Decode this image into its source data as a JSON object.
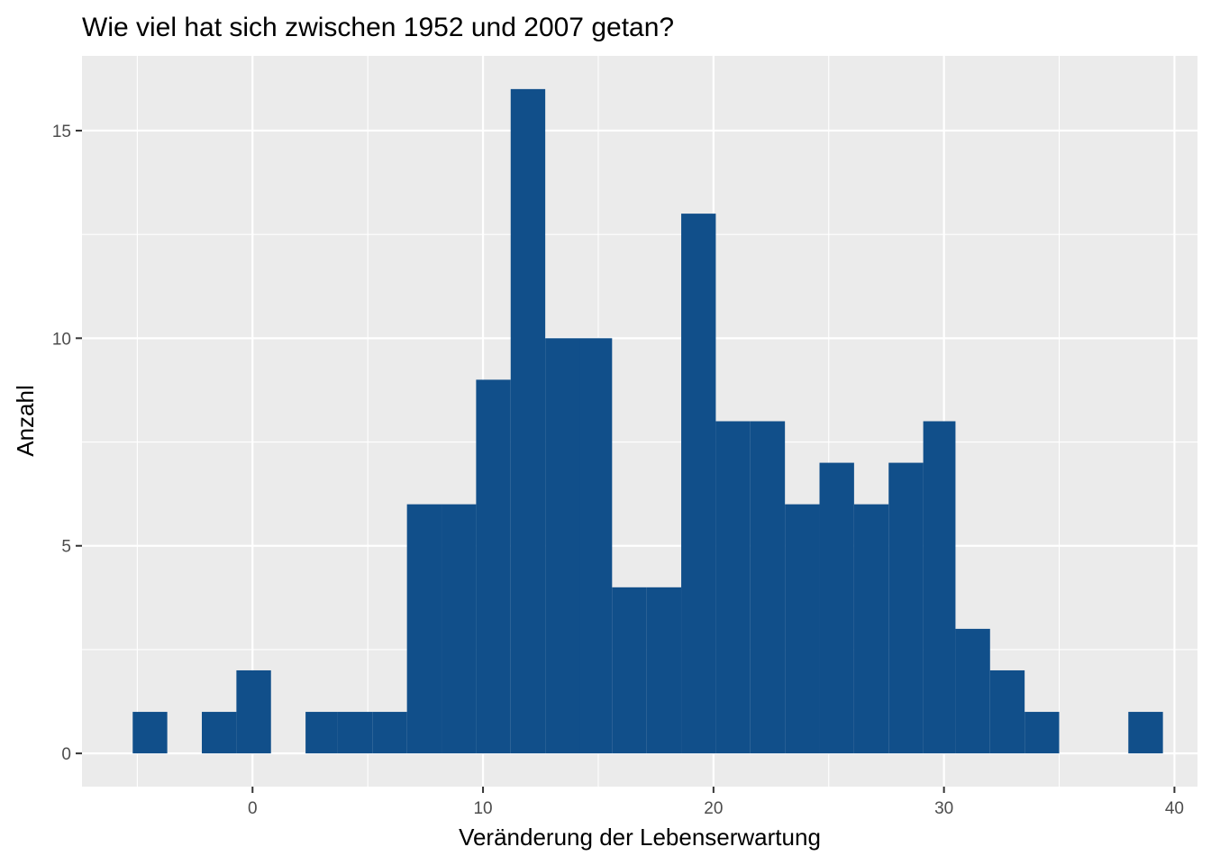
{
  "colors": {
    "panel_background": "#EBEBEB",
    "grid_major": "#FFFFFF",
    "bar_fill": "#114F8A",
    "tick_color": "#333333"
  },
  "chart_data": {
    "type": "bar",
    "title": "Wie viel hat sich zwischen 1952 und 2007 getan?",
    "xlabel": "Veränderung der Lebenserwartung",
    "ylabel": "Anzahl",
    "xlim": [
      -7.4,
      41.0
    ],
    "ylim": [
      -0.8,
      16.8
    ],
    "x_ticks": [
      0,
      10,
      20,
      30,
      40
    ],
    "x_tick_labels": [
      "0",
      "10",
      "20",
      "30",
      "40"
    ],
    "y_ticks": [
      0,
      5,
      10,
      15
    ],
    "y_tick_labels": [
      "0",
      "5",
      "10",
      "15"
    ],
    "grid": true,
    "bin_width": 1.49,
    "bins": [
      {
        "x0": -5.2,
        "x1": -3.7,
        "count": 1
      },
      {
        "x0": -3.7,
        "x1": -2.2,
        "count": 0
      },
      {
        "x0": -2.2,
        "x1": -0.7,
        "count": 1
      },
      {
        "x0": -0.7,
        "x1": 0.8,
        "count": 2
      },
      {
        "x0": 0.8,
        "x1": 2.3,
        "count": 0
      },
      {
        "x0": 2.3,
        "x1": 3.7,
        "count": 1
      },
      {
        "x0": 3.7,
        "x1": 5.2,
        "count": 1
      },
      {
        "x0": 5.2,
        "x1": 6.7,
        "count": 1
      },
      {
        "x0": 6.7,
        "x1": 8.2,
        "count": 6
      },
      {
        "x0": 8.2,
        "x1": 9.7,
        "count": 6
      },
      {
        "x0": 9.7,
        "x1": 11.2,
        "count": 9
      },
      {
        "x0": 11.2,
        "x1": 12.7,
        "count": 16
      },
      {
        "x0": 12.7,
        "x1": 14.2,
        "count": 10
      },
      {
        "x0": 14.2,
        "x1": 15.6,
        "count": 10
      },
      {
        "x0": 15.6,
        "x1": 17.1,
        "count": 4
      },
      {
        "x0": 17.1,
        "x1": 18.6,
        "count": 4
      },
      {
        "x0": 18.6,
        "x1": 20.1,
        "count": 13
      },
      {
        "x0": 20.1,
        "x1": 21.6,
        "count": 8
      },
      {
        "x0": 21.6,
        "x1": 23.1,
        "count": 8
      },
      {
        "x0": 23.1,
        "x1": 24.6,
        "count": 6
      },
      {
        "x0": 24.6,
        "x1": 26.1,
        "count": 7
      },
      {
        "x0": 26.1,
        "x1": 27.6,
        "count": 6
      },
      {
        "x0": 27.6,
        "x1": 29.1,
        "count": 7
      },
      {
        "x0": 29.1,
        "x1": 30.5,
        "count": 8
      },
      {
        "x0": 30.5,
        "x1": 32.0,
        "count": 3
      },
      {
        "x0": 32.0,
        "x1": 33.5,
        "count": 2
      },
      {
        "x0": 33.5,
        "x1": 35.0,
        "count": 1
      },
      {
        "x0": 35.0,
        "x1": 36.5,
        "count": 0
      },
      {
        "x0": 36.5,
        "x1": 38.0,
        "count": 0
      },
      {
        "x0": 38.0,
        "x1": 39.5,
        "count": 1
      }
    ]
  }
}
